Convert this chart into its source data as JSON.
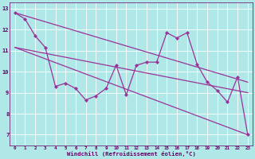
{
  "x": [
    0,
    1,
    2,
    3,
    4,
    5,
    6,
    7,
    8,
    9,
    10,
    11,
    12,
    13,
    14,
    15,
    16,
    17,
    18,
    19,
    20,
    21,
    22,
    23
  ],
  "y_data": [
    12.8,
    12.5,
    11.7,
    11.15,
    9.3,
    9.45,
    9.2,
    8.65,
    8.85,
    9.2,
    10.3,
    8.9,
    10.3,
    10.45,
    10.45,
    11.85,
    11.6,
    11.85,
    10.35,
    9.5,
    9.1,
    8.55,
    9.75,
    7.0
  ],
  "trend1_x": [
    0,
    23
  ],
  "trend1_y": [
    12.8,
    9.5
  ],
  "trend2_x": [
    0,
    23
  ],
  "trend2_y": [
    11.15,
    9.0
  ],
  "trend3_x": [
    0,
    23
  ],
  "trend3_y": [
    11.15,
    7.0
  ],
  "color": "#993399",
  "bg_color": "#b0e8e8",
  "grid_color": "#ffffff",
  "xlabel": "Windchill (Refroidissement éolien,°C)",
  "xlim": [
    -0.5,
    23.5
  ],
  "ylim": [
    6.5,
    13.3
  ],
  "xtick_values": [
    0,
    1,
    2,
    3,
    4,
    5,
    6,
    7,
    8,
    9,
    10,
    11,
    12,
    13,
    14,
    15,
    16,
    17,
    18,
    19,
    20,
    21,
    22,
    23
  ],
  "xtick_labels": [
    "0",
    "1",
    "2",
    "3",
    "4",
    "5",
    "6",
    "7",
    "8",
    "9",
    "10",
    "11",
    "12",
    "13",
    "14",
    "15",
    "16",
    "17",
    "18",
    "19",
    "20",
    "21",
    "22",
    "23"
  ],
  "ytick_values": [
    7,
    8,
    9,
    10,
    11,
    12,
    13
  ],
  "ytick_labels": [
    "7",
    "8",
    "9",
    "10",
    "11",
    "12",
    "13"
  ]
}
